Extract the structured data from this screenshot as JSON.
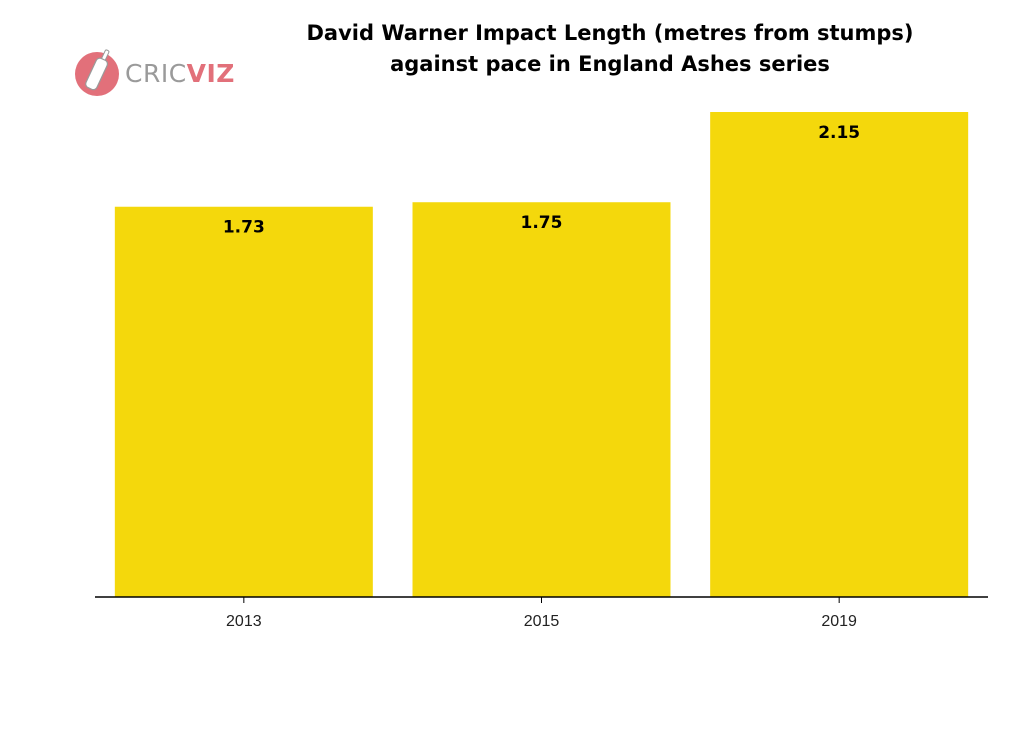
{
  "logo": {
    "part1": "CRIC",
    "part2": "VIZ"
  },
  "chart_data": {
    "type": "bar",
    "title_lines": [
      "David Warner Impact Length (metres from stumps)",
      "against pace in England Ashes series"
    ],
    "categories": [
      "2013",
      "2015",
      "2019"
    ],
    "values": [
      1.73,
      1.75,
      2.15
    ],
    "data_labels": [
      "1.73",
      "1.75",
      "2.15"
    ],
    "xlabel": "",
    "ylabel": "",
    "ylim": [
      0,
      2.15
    ],
    "grid": false,
    "bar_color": "#f4d80c",
    "label_color": "#000000"
  }
}
